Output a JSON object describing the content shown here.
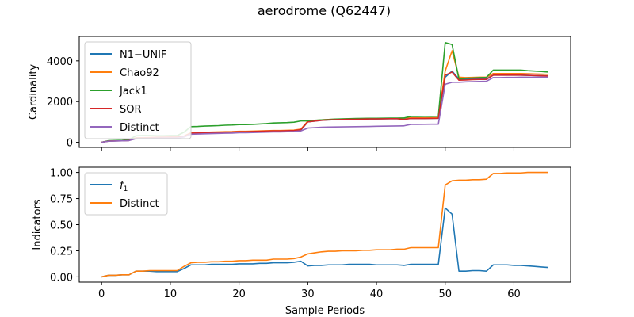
{
  "figure": {
    "title": "aerodrome (Q62447)"
  },
  "chart_data": [
    {
      "type": "line",
      "ylabel": "Cardinality",
      "xlabel": "",
      "xlim": [
        -3.25,
        68.25
      ],
      "ylim": [
        -250,
        5200
      ],
      "xticks": [
        0,
        10,
        20,
        30,
        40,
        50,
        60
      ],
      "yticks": [
        0,
        2000,
        4000
      ],
      "legend_position": "top-left",
      "x": [
        0,
        1,
        2,
        3,
        4,
        5,
        6,
        7,
        8,
        9,
        10,
        11,
        12,
        13,
        14,
        15,
        16,
        17,
        18,
        19,
        20,
        21,
        22,
        23,
        24,
        25,
        26,
        27,
        28,
        29,
        30,
        31,
        32,
        33,
        34,
        35,
        36,
        37,
        38,
        39,
        40,
        41,
        42,
        43,
        44,
        45,
        46,
        47,
        48,
        49,
        50,
        51,
        52,
        53,
        54,
        55,
        56,
        57,
        58,
        59,
        60,
        61,
        62,
        63,
        64,
        65
      ],
      "series": [
        {
          "name": "N1−UNIF",
          "color": "#1f77b4",
          "values": [
            0,
            60,
            70,
            80,
            95,
            210,
            215,
            225,
            240,
            245,
            250,
            250,
            300,
            450,
            460,
            470,
            480,
            490,
            500,
            505,
            520,
            520,
            530,
            540,
            550,
            560,
            560,
            570,
            580,
            600,
            1000,
            1040,
            1080,
            1100,
            1110,
            1120,
            1130,
            1130,
            1140,
            1150,
            1150,
            1155,
            1160,
            1160,
            1165,
            1170,
            1170,
            1170,
            1175,
            1180,
            3200,
            3500,
            3100,
            3100,
            3110,
            3120,
            3120,
            3300,
            3300,
            3300,
            3300,
            3300,
            3290,
            3280,
            3270,
            3260
          ]
        },
        {
          "name": "Chao92",
          "color": "#ff7f0e",
          "values": [
            0,
            65,
            75,
            85,
            100,
            220,
            225,
            235,
            250,
            255,
            260,
            260,
            310,
            470,
            480,
            490,
            500,
            510,
            520,
            525,
            540,
            540,
            550,
            560,
            570,
            580,
            580,
            590,
            600,
            650,
            1040,
            1070,
            1100,
            1120,
            1130,
            1140,
            1150,
            1150,
            1160,
            1170,
            1170,
            1175,
            1180,
            1180,
            1190,
            1200,
            1200,
            1200,
            1205,
            1210,
            3500,
            4500,
            3200,
            3180,
            3190,
            3200,
            3200,
            3380,
            3380,
            3380,
            3380,
            3380,
            3370,
            3360,
            3350,
            3340
          ]
        },
        {
          "name": "Jack1",
          "color": "#2ca02c",
          "values": [
            0,
            80,
            90,
            100,
            130,
            320,
            330,
            330,
            320,
            320,
            330,
            330,
            500,
            770,
            780,
            800,
            810,
            820,
            840,
            850,
            870,
            870,
            880,
            900,
            920,
            950,
            960,
            970,
            990,
            1050,
            1050,
            1080,
            1100,
            1120,
            1140,
            1150,
            1160,
            1170,
            1175,
            1180,
            1180,
            1185,
            1190,
            1190,
            1195,
            1270,
            1270,
            1275,
            1275,
            1280,
            4900,
            4800,
            3100,
            3150,
            3160,
            3180,
            3190,
            3550,
            3550,
            3550,
            3550,
            3550,
            3520,
            3500,
            3480,
            3450
          ]
        },
        {
          "name": "SOR",
          "color": "#d62728",
          "values": [
            0,
            60,
            70,
            75,
            90,
            210,
            215,
            225,
            240,
            245,
            250,
            250,
            300,
            450,
            460,
            470,
            480,
            490,
            500,
            505,
            520,
            520,
            530,
            540,
            550,
            560,
            560,
            570,
            580,
            620,
            1000,
            1040,
            1080,
            1100,
            1110,
            1120,
            1130,
            1130,
            1140,
            1150,
            1150,
            1155,
            1160,
            1160,
            1120,
            1170,
            1170,
            1170,
            1175,
            1180,
            3300,
            3450,
            3050,
            3060,
            3080,
            3090,
            3090,
            3300,
            3300,
            3300,
            3300,
            3300,
            3290,
            3280,
            3270,
            3250
          ]
        },
        {
          "name": "Distinct",
          "color": "#9467bd",
          "values": [
            0,
            55,
            65,
            75,
            85,
            180,
            185,
            190,
            200,
            205,
            210,
            210,
            260,
            400,
            410,
            420,
            430,
            440,
            450,
            455,
            470,
            470,
            480,
            490,
            500,
            510,
            510,
            520,
            530,
            560,
            700,
            720,
            740,
            750,
            755,
            760,
            765,
            770,
            775,
            780,
            790,
            795,
            800,
            805,
            810,
            880,
            880,
            885,
            890,
            890,
            2850,
            2950,
            2950,
            2970,
            2980,
            2990,
            3000,
            3180,
            3180,
            3190,
            3190,
            3200,
            3200,
            3200,
            3200,
            3200
          ]
        }
      ]
    },
    {
      "type": "line",
      "ylabel": "Indicators",
      "xlabel": "Sample Periods",
      "xlim": [
        -3.25,
        68.25
      ],
      "ylim": [
        -0.05,
        1.05
      ],
      "xticks": [
        0,
        10,
        20,
        30,
        40,
        50,
        60
      ],
      "yticks": [
        0.0,
        0.25,
        0.5,
        0.75,
        1.0
      ],
      "ytick_labels": [
        "0.00",
        "0.25",
        "0.50",
        "0.75",
        "1.00"
      ],
      "legend_position": "top-left",
      "x": [
        0,
        1,
        2,
        3,
        4,
        5,
        6,
        7,
        8,
        9,
        10,
        11,
        12,
        13,
        14,
        15,
        16,
        17,
        18,
        19,
        20,
        21,
        22,
        23,
        24,
        25,
        26,
        27,
        28,
        29,
        30,
        31,
        32,
        33,
        34,
        35,
        36,
        37,
        38,
        39,
        40,
        41,
        42,
        43,
        44,
        45,
        46,
        47,
        48,
        49,
        50,
        51,
        52,
        53,
        54,
        55,
        56,
        57,
        58,
        59,
        60,
        61,
        62,
        63,
        64,
        65
      ],
      "series": [
        {
          "name": "f1",
          "legend_label_main": "f",
          "legend_label_sub": "1",
          "color": "#1f77b4",
          "values": [
            0.0,
            0.015,
            0.015,
            0.02,
            0.02,
            0.055,
            0.055,
            0.055,
            0.05,
            0.05,
            0.05,
            0.05,
            0.08,
            0.115,
            0.115,
            0.115,
            0.12,
            0.12,
            0.12,
            0.12,
            0.125,
            0.125,
            0.125,
            0.13,
            0.13,
            0.135,
            0.135,
            0.135,
            0.14,
            0.15,
            0.105,
            0.11,
            0.11,
            0.115,
            0.115,
            0.115,
            0.12,
            0.12,
            0.12,
            0.12,
            0.115,
            0.115,
            0.115,
            0.115,
            0.11,
            0.12,
            0.12,
            0.12,
            0.12,
            0.12,
            0.66,
            0.6,
            0.055,
            0.055,
            0.06,
            0.06,
            0.055,
            0.115,
            0.115,
            0.115,
            0.11,
            0.11,
            0.105,
            0.1,
            0.095,
            0.09
          ]
        },
        {
          "name": "Distinct",
          "color": "#ff7f0e",
          "values": [
            0.0,
            0.015,
            0.015,
            0.02,
            0.02,
            0.055,
            0.055,
            0.06,
            0.06,
            0.06,
            0.06,
            0.06,
            0.1,
            0.135,
            0.14,
            0.14,
            0.145,
            0.145,
            0.15,
            0.15,
            0.155,
            0.155,
            0.16,
            0.16,
            0.16,
            0.17,
            0.17,
            0.17,
            0.175,
            0.19,
            0.22,
            0.23,
            0.24,
            0.245,
            0.245,
            0.25,
            0.25,
            0.25,
            0.255,
            0.255,
            0.26,
            0.26,
            0.26,
            0.265,
            0.265,
            0.28,
            0.28,
            0.28,
            0.28,
            0.28,
            0.88,
            0.92,
            0.925,
            0.925,
            0.93,
            0.93,
            0.935,
            0.99,
            0.99,
            0.995,
            0.995,
            0.995,
            1.0,
            1.0,
            1.0,
            1.0
          ]
        }
      ]
    }
  ]
}
